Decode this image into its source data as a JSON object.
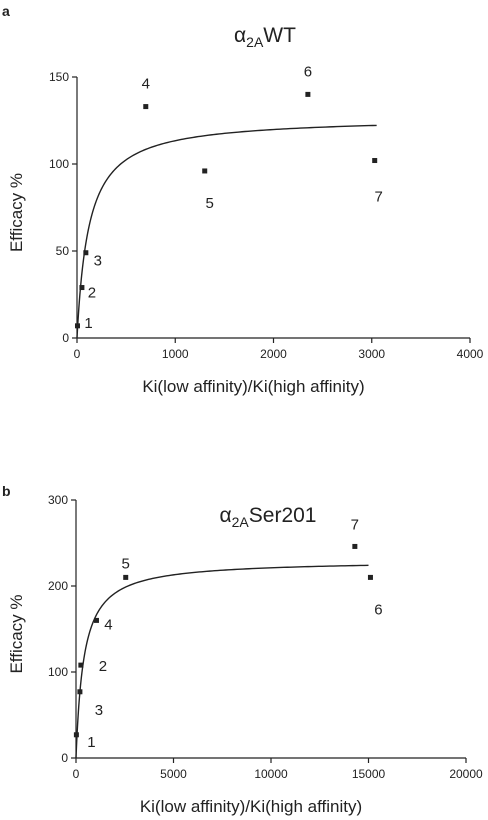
{
  "chart_data": [
    {
      "type": "scatter",
      "panel": "a",
      "title_base": "α",
      "title_sub": "2A",
      "title_rest": "WT",
      "xlabel": "Ki(low affinity)/Ki(high affinity)",
      "ylabel": "Efficacy %",
      "xlim": [
        0,
        4000
      ],
      "ylim": [
        0,
        150
      ],
      "xticks": [
        0,
        1000,
        2000,
        3000,
        4000
      ],
      "yticks": [
        0,
        50,
        100,
        150
      ],
      "grid": false,
      "points": [
        {
          "label": "1",
          "x": 5,
          "y": 7
        },
        {
          "label": "2",
          "x": 50,
          "y": 29
        },
        {
          "label": "3",
          "x": 90,
          "y": 49
        },
        {
          "label": "4",
          "x": 700,
          "y": 133
        },
        {
          "label": "5",
          "x": 1300,
          "y": 96
        },
        {
          "label": "6",
          "x": 2350,
          "y": 140
        },
        {
          "label": "7",
          "x": 3030,
          "y": 102
        }
      ],
      "fit": {
        "type": "hyperbolic",
        "emax": 127,
        "k": 120,
        "x_end": 3050
      }
    },
    {
      "type": "scatter",
      "panel": "b",
      "title_base": "α",
      "title_sub": "2A",
      "title_rest": "Ser201",
      "xlabel": "Ki(low affinity)/Ki(high affinity)",
      "ylabel": "Efficacy %",
      "xlim": [
        0,
        20000
      ],
      "ylim": [
        0,
        300
      ],
      "xticks": [
        0,
        5000,
        10000,
        15000,
        20000
      ],
      "yticks": [
        0,
        100,
        200,
        300
      ],
      "grid": false,
      "points": [
        {
          "label": "1",
          "x": 20,
          "y": 27
        },
        {
          "label": "2",
          "x": 250,
          "y": 108
        },
        {
          "label": "3",
          "x": 200,
          "y": 77
        },
        {
          "label": "4",
          "x": 1050,
          "y": 160
        },
        {
          "label": "5",
          "x": 2550,
          "y": 210
        },
        {
          "label": "6",
          "x": 15100,
          "y": 210
        },
        {
          "label": "7",
          "x": 14300,
          "y": 246
        }
      ],
      "fit": {
        "type": "hyperbolic",
        "emax": 230,
        "k": 400,
        "x_end": 15000
      }
    }
  ]
}
